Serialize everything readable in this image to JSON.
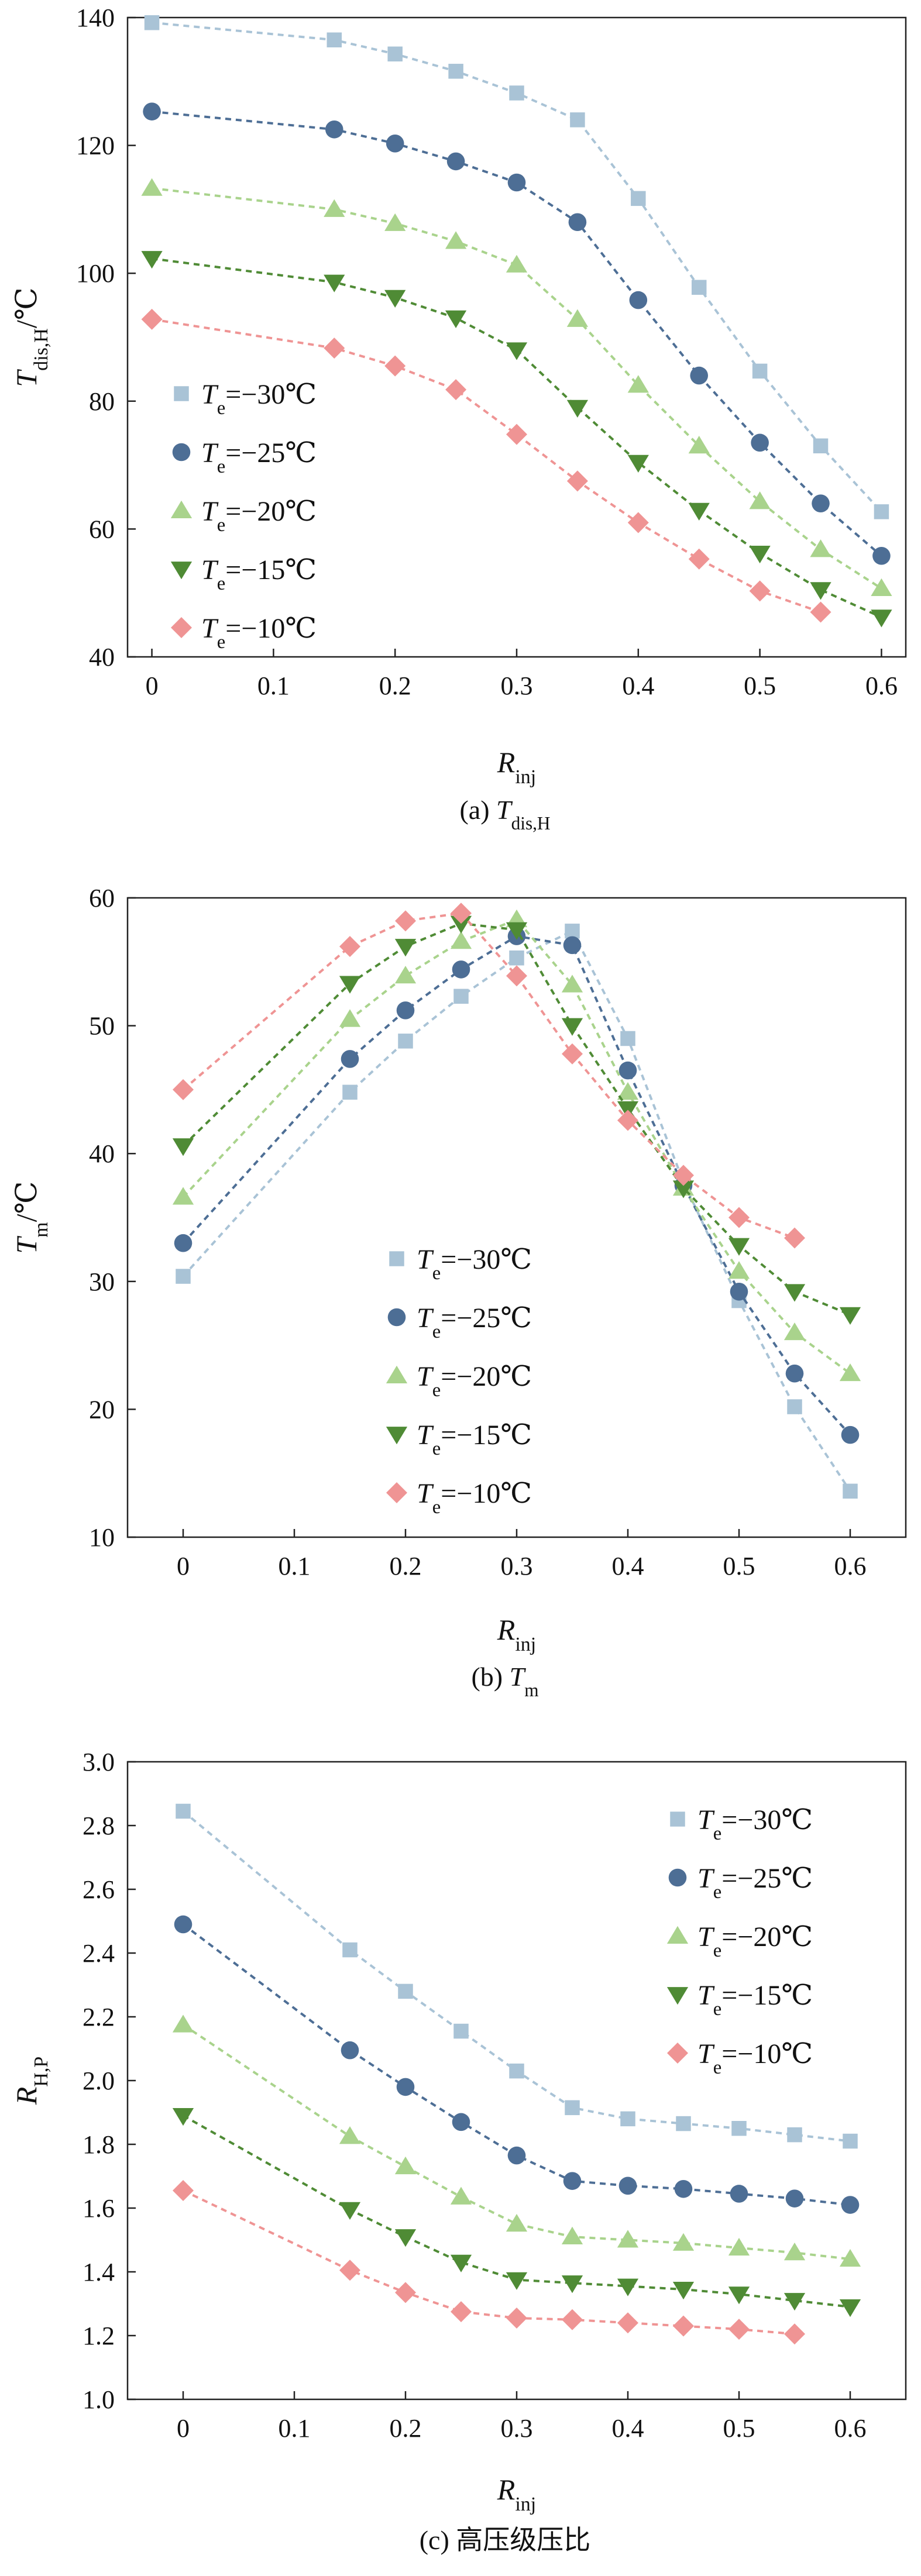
{
  "series_style": [
    {
      "key": "m30",
      "color": "#a9c3d6",
      "marker": "square"
    },
    {
      "key": "m25",
      "color": "#4d6e95",
      "marker": "circle"
    },
    {
      "key": "m20",
      "color": "#a9d38c",
      "marker": "triangle-up"
    },
    {
      "key": "m15",
      "color": "#4f8b35",
      "marker": "triangle-down"
    },
    {
      "key": "m10",
      "color": "#ef9494",
      "marker": "diamond"
    }
  ],
  "chart_data": [
    {
      "type": "scatter",
      "caption": {
        "prefix": "(a) ",
        "main": "T",
        "sub": "dis,H"
      },
      "ylabel": {
        "main": "T",
        "sub": "dis,H",
        "unit": "/℃"
      },
      "xlabel": {
        "main": "R",
        "sub": "inj"
      },
      "xlim": [
        -0.02,
        0.62
      ],
      "ylim": [
        40,
        140
      ],
      "xticks": [
        "0",
        "0.1",
        "0.2",
        "0.3",
        "0.4",
        "0.5",
        "0.6"
      ],
      "yticks": [
        "40",
        "60",
        "80",
        "100",
        "120",
        "140"
      ],
      "legend_position": "left",
      "series": [
        {
          "name": {
            "main": "T",
            "sub": "e",
            "value": "=−30℃"
          },
          "points": [
            [
              0.0,
              139.2
            ],
            [
              0.15,
              136.5
            ],
            [
              0.2,
              134.3
            ],
            [
              0.25,
              131.6
            ],
            [
              0.3,
              128.2
            ],
            [
              0.35,
              124.0
            ],
            [
              0.4,
              111.7
            ],
            [
              0.45,
              97.8
            ],
            [
              0.5,
              84.7
            ],
            [
              0.55,
              73.0
            ],
            [
              0.6,
              62.7
            ]
          ]
        },
        {
          "name": {
            "main": "T",
            "sub": "e",
            "value": "=−25℃"
          },
          "points": [
            [
              0.0,
              125.3
            ],
            [
              0.15,
              122.5
            ],
            [
              0.2,
              120.3
            ],
            [
              0.25,
              117.5
            ],
            [
              0.3,
              114.2
            ],
            [
              0.35,
              108.0
            ],
            [
              0.4,
              95.8
            ],
            [
              0.45,
              84.0
            ],
            [
              0.5,
              73.5
            ],
            [
              0.55,
              64.0
            ],
            [
              0.6,
              55.8
            ]
          ]
        },
        {
          "name": {
            "main": "T",
            "sub": "e",
            "value": "=−20℃"
          },
          "points": [
            [
              0.0,
              113.3
            ],
            [
              0.15,
              110.0
            ],
            [
              0.2,
              107.8
            ],
            [
              0.25,
              105.0
            ],
            [
              0.3,
              101.3
            ],
            [
              0.35,
              92.8
            ],
            [
              0.4,
              82.5
            ],
            [
              0.45,
              73.0
            ],
            [
              0.5,
              64.3
            ],
            [
              0.55,
              56.8
            ],
            [
              0.6,
              50.7
            ]
          ]
        },
        {
          "name": {
            "main": "T",
            "sub": "e",
            "value": "=−15℃"
          },
          "points": [
            [
              0.0,
              102.3
            ],
            [
              0.15,
              98.6
            ],
            [
              0.2,
              96.2
            ],
            [
              0.25,
              93.0
            ],
            [
              0.3,
              88.0
            ],
            [
              0.35,
              79.0
            ],
            [
              0.4,
              70.4
            ],
            [
              0.45,
              62.9
            ],
            [
              0.5,
              56.2
            ],
            [
              0.55,
              50.5
            ],
            [
              0.6,
              46.2
            ]
          ]
        },
        {
          "name": {
            "main": "T",
            "sub": "e",
            "value": "=−10℃"
          },
          "points": [
            [
              0.0,
              92.8
            ],
            [
              0.15,
              88.3
            ],
            [
              0.2,
              85.5
            ],
            [
              0.25,
              81.8
            ],
            [
              0.3,
              74.8
            ],
            [
              0.35,
              67.5
            ],
            [
              0.4,
              61.0
            ],
            [
              0.45,
              55.3
            ],
            [
              0.5,
              50.3
            ],
            [
              0.55,
              47.0
            ]
          ]
        }
      ]
    },
    {
      "type": "scatter",
      "caption": {
        "prefix": "(b) ",
        "main": "T",
        "sub": "m"
      },
      "ylabel": {
        "main": "T",
        "sub": "m",
        "unit": "/℃"
      },
      "xlabel": {
        "main": "R",
        "sub": "inj"
      },
      "xlim": [
        -0.05,
        0.65
      ],
      "ylim": [
        10,
        60
      ],
      "xticks": [
        "0",
        "0.1",
        "0.2",
        "0.3",
        "0.4",
        "0.5",
        "0.6"
      ],
      "yticks": [
        "10",
        "20",
        "30",
        "40",
        "50",
        "60"
      ],
      "legend_position": "bottom-center",
      "series": [
        {
          "name": {
            "main": "T",
            "sub": "e",
            "value": "=−30℃"
          },
          "points": [
            [
              0.0,
              30.4
            ],
            [
              0.15,
              44.8
            ],
            [
              0.2,
              48.8
            ],
            [
              0.25,
              52.3
            ],
            [
              0.3,
              55.3
            ],
            [
              0.35,
              57.4
            ],
            [
              0.4,
              49.0
            ],
            [
              0.45,
              37.8
            ],
            [
              0.5,
              28.5
            ],
            [
              0.55,
              20.2
            ],
            [
              0.6,
              13.6
            ]
          ]
        },
        {
          "name": {
            "main": "T",
            "sub": "e",
            "value": "=−25℃"
          },
          "points": [
            [
              0.0,
              33.0
            ],
            [
              0.15,
              47.4
            ],
            [
              0.2,
              51.2
            ],
            [
              0.25,
              54.4
            ],
            [
              0.3,
              57.0
            ],
            [
              0.35,
              56.3
            ],
            [
              0.4,
              46.5
            ],
            [
              0.45,
              37.5
            ],
            [
              0.5,
              29.2
            ],
            [
              0.55,
              22.8
            ],
            [
              0.6,
              18.0
            ]
          ]
        },
        {
          "name": {
            "main": "T",
            "sub": "e",
            "value": "=−20℃"
          },
          "points": [
            [
              0.0,
              36.6
            ],
            [
              0.15,
              50.5
            ],
            [
              0.2,
              53.9
            ],
            [
              0.25,
              56.6
            ],
            [
              0.3,
              58.3
            ],
            [
              0.35,
              53.2
            ],
            [
              0.4,
              44.8
            ],
            [
              0.45,
              37.3
            ],
            [
              0.5,
              30.8
            ],
            [
              0.55,
              26.0
            ],
            [
              0.6,
              22.8
            ]
          ]
        },
        {
          "name": {
            "main": "T",
            "sub": "e",
            "value": "=−15℃"
          },
          "points": [
            [
              0.0,
              40.6
            ],
            [
              0.15,
              53.3
            ],
            [
              0.2,
              56.2
            ],
            [
              0.25,
              58.0
            ],
            [
              0.3,
              57.5
            ],
            [
              0.35,
              50.0
            ],
            [
              0.4,
              43.5
            ],
            [
              0.45,
              37.3
            ],
            [
              0.5,
              32.8
            ],
            [
              0.55,
              29.2
            ],
            [
              0.6,
              27.4
            ]
          ]
        },
        {
          "name": {
            "main": "T",
            "sub": "e",
            "value": "=−10℃"
          },
          "points": [
            [
              0.0,
              45.0
            ],
            [
              0.15,
              56.2
            ],
            [
              0.2,
              58.2
            ],
            [
              0.25,
              58.8
            ],
            [
              0.3,
              53.9
            ],
            [
              0.35,
              47.8
            ],
            [
              0.4,
              42.6
            ],
            [
              0.45,
              38.3
            ],
            [
              0.5,
              35.0
            ],
            [
              0.55,
              33.4
            ]
          ]
        }
      ]
    },
    {
      "type": "scatter",
      "caption": {
        "prefix": "(c) ",
        "main": "高压级压比",
        "sub": ""
      },
      "ylabel": {
        "main": "R",
        "sub": "H,P",
        "unit": ""
      },
      "xlabel": {
        "main": "R",
        "sub": "inj"
      },
      "xlim": [
        -0.05,
        0.65
      ],
      "ylim": [
        1.0,
        3.0
      ],
      "xticks": [
        "0",
        "0.1",
        "0.2",
        "0.3",
        "0.4",
        "0.5",
        "0.6"
      ],
      "yticks": [
        "1.0",
        "1.2",
        "1.4",
        "1.6",
        "1.8",
        "2.0",
        "2.2",
        "2.4",
        "2.6",
        "2.8",
        "3.0"
      ],
      "legend_position": "top-right",
      "series": [
        {
          "name": {
            "main": "T",
            "sub": "e",
            "value": "=−30℃"
          },
          "points": [
            [
              0.0,
              2.845
            ],
            [
              0.15,
              2.41
            ],
            [
              0.2,
              2.28
            ],
            [
              0.25,
              2.155
            ],
            [
              0.3,
              2.03
            ],
            [
              0.35,
              1.915
            ],
            [
              0.4,
              1.88
            ],
            [
              0.45,
              1.865
            ],
            [
              0.5,
              1.85
            ],
            [
              0.55,
              1.83
            ],
            [
              0.6,
              1.81
            ]
          ]
        },
        {
          "name": {
            "main": "T",
            "sub": "e",
            "value": "=−25℃"
          },
          "points": [
            [
              0.0,
              2.49
            ],
            [
              0.15,
              2.095
            ],
            [
              0.2,
              1.98
            ],
            [
              0.25,
              1.87
            ],
            [
              0.3,
              1.765
            ],
            [
              0.35,
              1.685
            ],
            [
              0.4,
              1.67
            ],
            [
              0.45,
              1.66
            ],
            [
              0.5,
              1.645
            ],
            [
              0.55,
              1.63
            ],
            [
              0.6,
              1.61
            ]
          ]
        },
        {
          "name": {
            "main": "T",
            "sub": "e",
            "value": "=−20℃"
          },
          "points": [
            [
              0.0,
              2.175
            ],
            [
              0.15,
              1.825
            ],
            [
              0.2,
              1.73
            ],
            [
              0.25,
              1.635
            ],
            [
              0.3,
              1.55
            ],
            [
              0.35,
              1.51
            ],
            [
              0.4,
              1.5
            ],
            [
              0.45,
              1.49
            ],
            [
              0.5,
              1.475
            ],
            [
              0.55,
              1.46
            ],
            [
              0.6,
              1.44
            ]
          ]
        },
        {
          "name": {
            "main": "T",
            "sub": "e",
            "value": "=−15℃"
          },
          "points": [
            [
              0.0,
              1.89
            ],
            [
              0.15,
              1.595
            ],
            [
              0.2,
              1.51
            ],
            [
              0.25,
              1.43
            ],
            [
              0.3,
              1.375
            ],
            [
              0.35,
              1.365
            ],
            [
              0.4,
              1.355
            ],
            [
              0.45,
              1.345
            ],
            [
              0.5,
              1.33
            ],
            [
              0.55,
              1.31
            ],
            [
              0.6,
              1.29
            ]
          ]
        },
        {
          "name": {
            "main": "T",
            "sub": "e",
            "value": "=−10℃"
          },
          "points": [
            [
              0.0,
              1.655
            ],
            [
              0.15,
              1.405
            ],
            [
              0.2,
              1.335
            ],
            [
              0.25,
              1.275
            ],
            [
              0.3,
              1.255
            ],
            [
              0.35,
              1.25
            ],
            [
              0.4,
              1.24
            ],
            [
              0.45,
              1.23
            ],
            [
              0.5,
              1.22
            ],
            [
              0.55,
              1.205
            ]
          ]
        }
      ]
    }
  ]
}
